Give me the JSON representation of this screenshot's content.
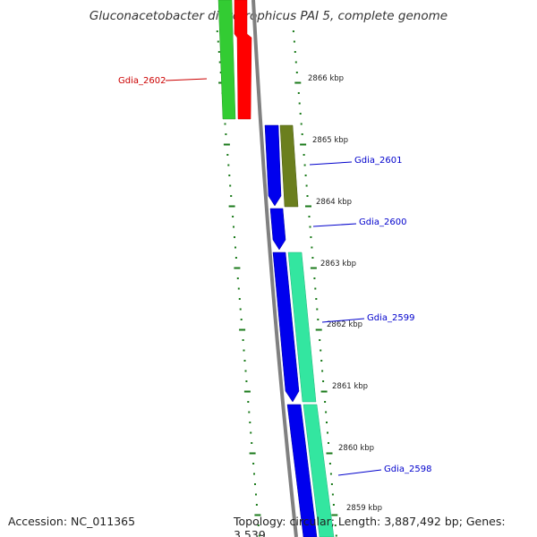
{
  "title": "Gluconacetobacter diazotrophicus PAI 5, complete genome",
  "accession": "Accession: NC_011365",
  "summary": "Topology: circular; Length: 3,887,492 bp; Genes: 3,539",
  "colors": {
    "backbone": "#808080",
    "tick": "#1a7a1a",
    "forward_red": "#ff0000",
    "forward_green": "#33cc33",
    "reverse_blue": "#0000ee",
    "reverse_olive": "#6b7f1e",
    "reverse_aqua": "#33e6a0",
    "label_red": "#cc0000",
    "label_blue": "#0000cc"
  },
  "ticks": [
    "2866 kbp",
    "2865 kbp",
    "2864 kbp",
    "2863 kbp",
    "2862 kbp",
    "2861 kbp",
    "2860 kbp",
    "2859 kbp"
  ],
  "genes": [
    {
      "name": "Gdia_2602",
      "color": "#cc0000"
    },
    {
      "name": "Gdia_2601",
      "color": "#0000cc"
    },
    {
      "name": "Gdia_2600",
      "color": "#0000cc"
    },
    {
      "name": "Gdia_2599",
      "color": "#0000cc"
    },
    {
      "name": "Gdia_2598",
      "color": "#0000cc"
    }
  ]
}
